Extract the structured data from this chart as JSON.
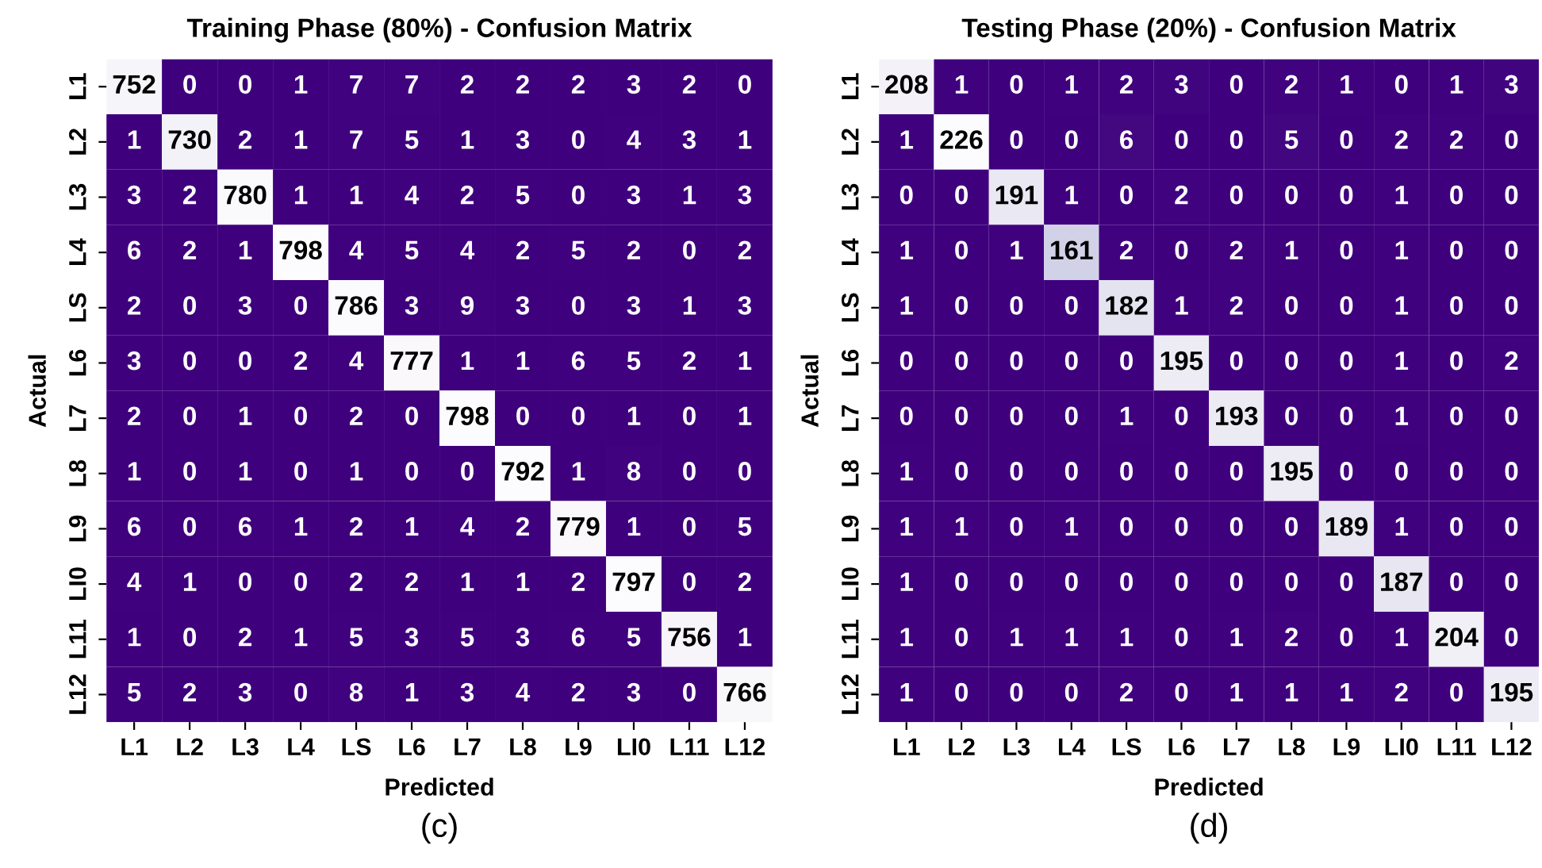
{
  "chart_data": [
    {
      "type": "heatmap",
      "title": "Training Phase (80%) - Confusion Matrix",
      "xlabel": "Predicted",
      "ylabel": "Actual",
      "annotations": [
        "(c)"
      ],
      "data_labels": true,
      "categories": [
        "L1",
        "L2",
        "L3",
        "L4",
        "LS",
        "L6",
        "L7",
        "L8",
        "L9",
        "LI0",
        "L11",
        "L12"
      ],
      "y_categories": [
        "L1",
        "L2",
        "L3",
        "L4",
        "LS",
        "L6",
        "L7",
        "L8",
        "L9",
        "LI0",
        "L11",
        "L12"
      ],
      "cells": [
        [
          752,
          0,
          0,
          1,
          7,
          7,
          2,
          2,
          2,
          3,
          2,
          0
        ],
        [
          1,
          730,
          2,
          1,
          7,
          5,
          1,
          3,
          0,
          4,
          3,
          1
        ],
        [
          3,
          2,
          780,
          1,
          1,
          4,
          2,
          5,
          0,
          3,
          1,
          3
        ],
        [
          6,
          2,
          1,
          798,
          4,
          5,
          4,
          2,
          5,
          2,
          0,
          2
        ],
        [
          2,
          0,
          3,
          0,
          786,
          3,
          9,
          3,
          0,
          3,
          1,
          3
        ],
        [
          3,
          0,
          0,
          2,
          4,
          777,
          1,
          1,
          6,
          5,
          2,
          1
        ],
        [
          2,
          0,
          1,
          0,
          2,
          0,
          798,
          0,
          0,
          1,
          0,
          1
        ],
        [
          1,
          0,
          1,
          0,
          1,
          0,
          0,
          792,
          1,
          8,
          0,
          0
        ],
        [
          6,
          0,
          6,
          1,
          2,
          1,
          4,
          2,
          779,
          1,
          0,
          5
        ],
        [
          4,
          1,
          0,
          0,
          2,
          2,
          1,
          1,
          2,
          797,
          0,
          2
        ],
        [
          1,
          0,
          2,
          1,
          5,
          3,
          5,
          3,
          6,
          5,
          756,
          1
        ],
        [
          5,
          2,
          3,
          0,
          8,
          1,
          3,
          4,
          2,
          3,
          0,
          766
        ]
      ]
    },
    {
      "type": "heatmap",
      "title": "Testing Phase (20%) - Confusion Matrix",
      "xlabel": "Predicted",
      "ylabel": "Actual",
      "annotations": [
        "(d)"
      ],
      "data_labels": true,
      "categories": [
        "L1",
        "L2",
        "L3",
        "L4",
        "LS",
        "L6",
        "L7",
        "L8",
        "L9",
        "LI0",
        "L11",
        "L12"
      ],
      "y_categories": [
        "L1",
        "L2",
        "L3",
        "L4",
        "LS",
        "L6",
        "L7",
        "L8",
        "L9",
        "LI0",
        "L11",
        "L12"
      ],
      "cells": [
        [
          208,
          1,
          0,
          1,
          2,
          3,
          0,
          2,
          1,
          0,
          1,
          3
        ],
        [
          1,
          226,
          0,
          0,
          6,
          0,
          0,
          5,
          0,
          2,
          2,
          0
        ],
        [
          0,
          0,
          191,
          1,
          0,
          2,
          0,
          0,
          0,
          1,
          0,
          0
        ],
        [
          1,
          0,
          1,
          161,
          2,
          0,
          2,
          1,
          0,
          1,
          0,
          0
        ],
        [
          1,
          0,
          0,
          0,
          182,
          1,
          2,
          0,
          0,
          1,
          0,
          0
        ],
        [
          0,
          0,
          0,
          0,
          0,
          195,
          0,
          0,
          0,
          1,
          0,
          2
        ],
        [
          0,
          0,
          0,
          0,
          1,
          0,
          193,
          0,
          0,
          1,
          0,
          0
        ],
        [
          1,
          0,
          0,
          0,
          0,
          0,
          0,
          195,
          0,
          0,
          0,
          0
        ],
        [
          1,
          1,
          0,
          1,
          0,
          0,
          0,
          0,
          189,
          1,
          0,
          0
        ],
        [
          1,
          0,
          0,
          0,
          0,
          0,
          0,
          0,
          0,
          187,
          0,
          0
        ],
        [
          1,
          0,
          1,
          1,
          1,
          0,
          1,
          2,
          0,
          1,
          204,
          0
        ],
        [
          1,
          0,
          0,
          0,
          2,
          0,
          1,
          1,
          1,
          2,
          0,
          195
        ]
      ]
    }
  ]
}
